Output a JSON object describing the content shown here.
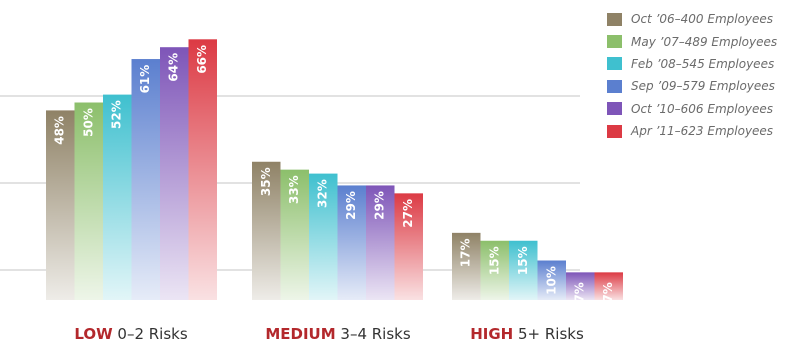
{
  "chart_data": {
    "type": "bar",
    "categories": [
      "LOW 0–2 Risks",
      "MEDIUM 3–4 Risks",
      "HIGH 5+ Risks"
    ],
    "category_labels": [
      {
        "bold": "LOW",
        "rest": " 0–2 Risks"
      },
      {
        "bold": "MEDIUM",
        "rest": " 3–4 Risks"
      },
      {
        "bold": "HIGH",
        "rest": " 5+ Risks"
      }
    ],
    "series": [
      {
        "name": "Oct ’06–400 Employees",
        "color": "#8f8266",
        "values": [
          48,
          35,
          17
        ]
      },
      {
        "name": "May ’07–489 Employees",
        "color": "#8cbf6b",
        "values": [
          50,
          33,
          15
        ]
      },
      {
        "name": "Feb ’08–545 Employees",
        "color": "#3fc0cf",
        "values": [
          52,
          32,
          15
        ]
      },
      {
        "name": "Sep ’09–579 Employees",
        "color": "#5b7fcf",
        "values": [
          61,
          29,
          10
        ]
      },
      {
        "name": "Oct ’10–606 Employees",
        "color": "#7e55b8",
        "values": [
          64,
          29,
          7
        ]
      },
      {
        "name": "Apr ’11–623 Employees",
        "color": "#dc3a44",
        "values": [
          66,
          27,
          7
        ]
      }
    ],
    "value_suffix": "%",
    "ylim": [
      0,
      70
    ],
    "grid": true,
    "legend_position": "top-right"
  }
}
